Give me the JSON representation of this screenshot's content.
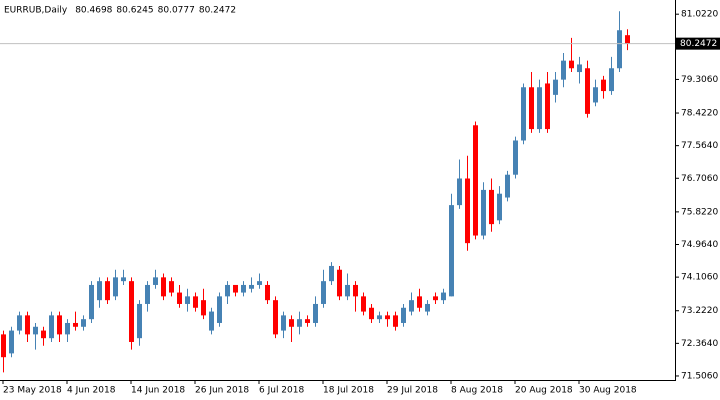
{
  "chart_data": {
    "type": "candlestick",
    "title": "EURRUB,Daily",
    "categories": [
      "23 May 2018",
      null,
      null,
      null,
      null,
      null,
      null,
      null,
      "4 Jun 2018",
      null,
      null,
      null,
      null,
      null,
      null,
      null,
      "14 Jun 2018",
      null,
      null,
      null,
      null,
      null,
      null,
      null,
      "26 Jun 2018",
      null,
      null,
      null,
      null,
      null,
      null,
      null,
      "6 Jul 2018",
      null,
      null,
      null,
      null,
      null,
      null,
      null,
      "18 Jul 2018",
      null,
      null,
      null,
      null,
      null,
      null,
      null,
      "29 Jul 2018",
      null,
      null,
      null,
      null,
      null,
      null,
      null,
      "8 Aug 2018",
      null,
      null,
      null,
      null,
      null,
      null,
      null,
      "20 Aug 2018",
      null,
      null,
      null,
      null,
      null,
      null,
      null,
      "30 Aug 2018",
      null,
      null,
      null,
      null,
      null,
      null
    ],
    "open": [
      72.6,
      72.1,
      72.7,
      73.1,
      72.6,
      72.7,
      72.5,
      73.1,
      72.6,
      72.9,
      72.8,
      73.0,
      73.5,
      74.0,
      73.6,
      74.0,
      74.0,
      72.5,
      73.4,
      73.9,
      74.1,
      74.0,
      73.7,
      73.4,
      73.6,
      73.5,
      72.7,
      72.9,
      73.6,
      73.9,
      73.7,
      73.8,
      73.9,
      73.9,
      73.5,
      72.7,
      73.0,
      72.8,
      73.0,
      72.9,
      73.4,
      74.0,
      74.3,
      73.6,
      73.9,
      73.6,
      73.3,
      73.0,
      73.1,
      73.1,
      72.9,
      73.2,
      73.6,
      73.2,
      73.6,
      73.5,
      73.6,
      76.0,
      76.7,
      78.1,
      75.2,
      76.4,
      75.6,
      76.2,
      76.8,
      77.7,
      79.1,
      78.0,
      79.2,
      78.9,
      79.3,
      79.8,
      79.5,
      79.6,
      78.7,
      79.3,
      79.0,
      79.6,
      80.4698
    ],
    "high": [
      72.7,
      72.8,
      73.2,
      73.2,
      72.9,
      72.8,
      73.2,
      73.2,
      73.0,
      73.2,
      73.1,
      74.0,
      74.1,
      74.1,
      74.3,
      74.3,
      74.1,
      73.5,
      74.0,
      74.3,
      74.2,
      74.1,
      73.9,
      73.8,
      73.7,
      73.8,
      73.3,
      73.7,
      74.0,
      73.9,
      74.0,
      74.1,
      74.2,
      74.0,
      73.6,
      73.2,
      73.1,
      73.2,
      73.1,
      73.6,
      74.3,
      74.5,
      74.4,
      74.2,
      74.0,
      73.7,
      73.4,
      73.2,
      73.2,
      73.2,
      73.4,
      73.7,
      73.8,
      73.5,
      73.7,
      73.8,
      76.3,
      77.2,
      77.3,
      78.2,
      76.6,
      76.7,
      76.5,
      76.9,
      77.8,
      79.2,
      79.5,
      79.3,
      79.5,
      79.5,
      80.0,
      80.4,
      79.9,
      79.8,
      79.3,
      79.4,
      79.9,
      81.1,
      80.6245
    ],
    "low": [
      71.6,
      72.0,
      72.6,
      72.4,
      72.2,
      72.3,
      72.4,
      72.4,
      72.4,
      72.7,
      72.7,
      72.9,
      73.3,
      73.4,
      73.5,
      73.9,
      72.2,
      72.3,
      73.2,
      73.8,
      73.5,
      73.6,
      73.3,
      73.2,
      73.2,
      73.0,
      72.6,
      72.8,
      73.4,
      73.6,
      73.6,
      73.7,
      73.8,
      73.4,
      72.5,
      72.5,
      72.4,
      72.6,
      72.8,
      72.8,
      73.3,
      73.9,
      73.5,
      73.5,
      73.2,
      73.1,
      72.9,
      72.9,
      72.8,
      72.7,
      72.8,
      73.1,
      73.2,
      73.1,
      73.4,
      73.4,
      73.6,
      75.9,
      74.8,
      75.1,
      75.1,
      75.3,
      75.5,
      76.1,
      76.7,
      77.6,
      77.9,
      77.9,
      77.9,
      78.7,
      79.1,
      79.5,
      79.2,
      78.3,
      78.6,
      78.8,
      78.9,
      79.5,
      80.0777
    ],
    "close": [
      72.0,
      72.7,
      73.1,
      72.6,
      72.8,
      72.5,
      73.1,
      72.6,
      72.9,
      72.8,
      73.0,
      73.9,
      74.0,
      73.5,
      74.1,
      74.1,
      72.4,
      73.4,
      73.9,
      74.1,
      73.6,
      73.7,
      73.4,
      73.6,
      73.3,
      73.1,
      73.2,
      73.6,
      73.9,
      73.7,
      73.9,
      73.9,
      74.0,
      73.5,
      72.6,
      73.1,
      72.8,
      73.0,
      72.9,
      73.4,
      74.0,
      74.4,
      73.6,
      73.9,
      73.6,
      73.2,
      73.0,
      73.1,
      73.0,
      72.8,
      73.3,
      73.5,
      73.3,
      73.4,
      73.5,
      73.7,
      76.0,
      76.7,
      75.0,
      75.2,
      76.4,
      75.5,
      76.3,
      76.8,
      77.7,
      79.1,
      78.0,
      79.1,
      78.0,
      79.3,
      79.8,
      79.6,
      79.7,
      78.4,
      79.1,
      79.0,
      79.6,
      80.6,
      80.2472
    ],
    "up_color": "#4682b4",
    "down_color": "#ff0000",
    "last_price_color": "#c0c0c0",
    "ylim": [
      71.4,
      81.29
    ],
    "yticks": [
      {
        "value": 71.506,
        "label": "71.5060"
      },
      {
        "value": 72.364,
        "label": "72.3640"
      },
      {
        "value": 73.222,
        "label": "73.2220"
      },
      {
        "value": 74.106,
        "label": "74.1060"
      },
      {
        "value": 74.964,
        "label": "74.9640"
      },
      {
        "value": 75.822,
        "label": "75.8220"
      },
      {
        "value": 76.706,
        "label": "76.7060"
      },
      {
        "value": 77.564,
        "label": "77.5640"
      },
      {
        "value": 78.422,
        "label": "78.4220"
      },
      {
        "value": 79.306,
        "label": "79.3060"
      },
      {
        "value": 81.022,
        "label": "81.0220"
      }
    ]
  }
}
